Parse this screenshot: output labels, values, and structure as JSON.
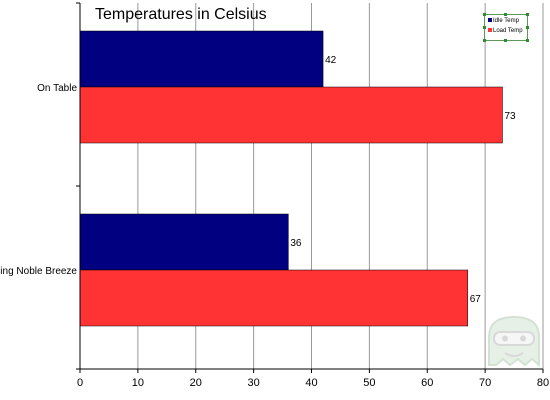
{
  "chart_data": {
    "type": "bar",
    "orientation": "horizontal",
    "title": "Temperatures in Celsius",
    "categories": [
      "On Table",
      "Using Noble Breeze"
    ],
    "series": [
      {
        "name": "Idle Temp",
        "color": "#000080",
        "values": [
          42,
          36
        ]
      },
      {
        "name": "Load Temp",
        "color": "#ff3333",
        "values": [
          73,
          67
        ]
      }
    ],
    "xlim": [
      0,
      80
    ],
    "xticks": [
      0,
      10,
      20,
      30,
      40,
      50,
      60,
      70,
      80
    ],
    "grid": true,
    "legend_position": "top-right",
    "data_labels": true
  },
  "colors": {
    "gridline": "#9a9a9a",
    "axis": "#000000"
  },
  "watermark_icon": "ghost-face-watermark-icon"
}
